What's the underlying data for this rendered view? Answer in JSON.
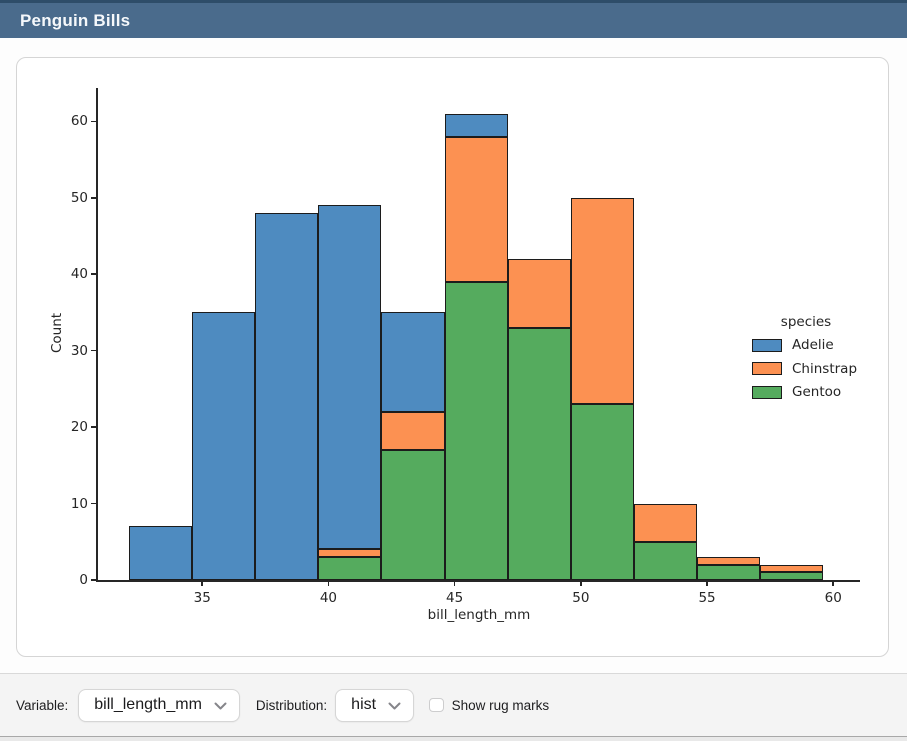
{
  "window": {
    "title": "Penguin Bills"
  },
  "chart_data": {
    "type": "bar",
    "subtype": "stacked_histogram",
    "title": "",
    "xlabel": "bill_length_mm",
    "ylabel": "Count",
    "legend_title": "species",
    "legend_position": "center right",
    "grid": false,
    "x_ticks": [
      35,
      40,
      45,
      50,
      55,
      60
    ],
    "y_ticks": [
      0,
      10,
      20,
      30,
      40,
      50,
      60
    ],
    "xlim": [
      30.9,
      61.1
    ],
    "ylim": [
      0,
      64.4
    ],
    "bin_start": 32.1,
    "bin_width": 2.5,
    "bin_edges": [
      32.1,
      34.6,
      37.1,
      39.6,
      42.1,
      44.6,
      47.1,
      49.6,
      52.1,
      54.6,
      57.1,
      59.6
    ],
    "stack_order_bottom_to_top": [
      "Gentoo",
      "Chinstrap",
      "Adelie"
    ],
    "series": [
      {
        "name": "Adelie",
        "color": "#4e8bc0",
        "values": [
          7,
          35,
          48,
          45,
          13,
          3,
          0,
          0,
          0,
          0,
          0
        ]
      },
      {
        "name": "Chinstrap",
        "color": "#fc9152",
        "values": [
          0,
          0,
          0,
          1,
          5,
          19,
          9,
          27,
          5,
          1,
          1
        ]
      },
      {
        "name": "Gentoo",
        "color": "#55ab5e",
        "values": [
          0,
          0,
          0,
          3,
          17,
          39,
          33,
          23,
          5,
          2,
          1
        ]
      }
    ],
    "bin_totals": [
      7,
      35,
      48,
      49,
      35,
      61,
      42,
      50,
      10,
      3,
      2
    ],
    "bar_edge_color": "#1c1c1c"
  },
  "controls": {
    "variable_label": "Variable:",
    "variable_value": "bill_length_mm",
    "distribution_label": "Distribution:",
    "distribution_value": "hist",
    "rug_checkbox_label": "Show rug marks",
    "rug_checkbox_checked": false
  },
  "colors": {
    "titlebar_bg": "#4a6b8c",
    "titlebar_top_edge": "#2e4d69",
    "titlebar_text": "#f5f8fb",
    "card_bg": "#ffffff",
    "card_border": "#d5d5d5",
    "controls_bg": "#f4f4f4",
    "axis_text": "#262626"
  }
}
